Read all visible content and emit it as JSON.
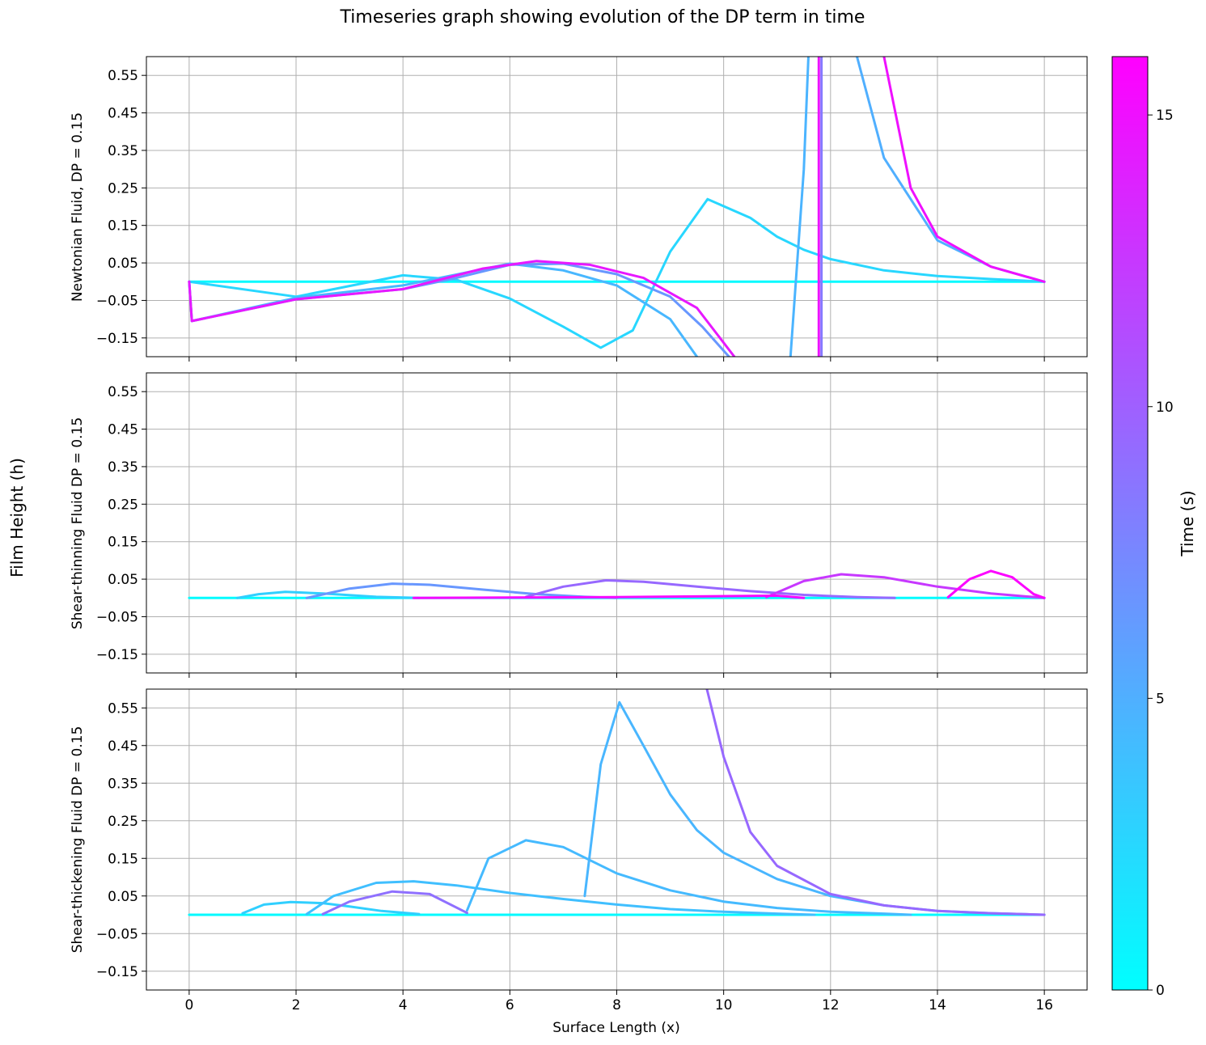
{
  "chart_data": {
    "type": "line",
    "title": "Timeseries graph showing evolution of the DP term in time",
    "ylabel_shared": "Film Height (h)",
    "xlabel": "Surface Length (x)",
    "xlim": [
      -0.8,
      16.8
    ],
    "ylim": [
      -0.2,
      0.6
    ],
    "x_ticks": [
      "0",
      "2",
      "4",
      "6",
      "8",
      "10",
      "12",
      "14",
      "16"
    ],
    "x_tick_values": [
      0,
      2,
      4,
      6,
      8,
      10,
      12,
      14,
      16
    ],
    "y_ticks": [
      "0.55",
      "0.45",
      "0.35",
      "0.25",
      "0.15",
      "0.05",
      "−0.05",
      "−0.15"
    ],
    "y_tick_values": [
      0.55,
      0.45,
      0.35,
      0.25,
      0.15,
      0.05,
      -0.05,
      -0.15
    ],
    "grid": true,
    "colorbar": {
      "label": "Time (s)",
      "range": [
        0,
        16
      ],
      "ticks": [
        "0",
        "5",
        "10",
        "15"
      ],
      "tick_values": [
        0,
        5,
        10,
        15
      ],
      "colormap": "cool",
      "color_low": "#00ffff",
      "color_high": "#ff00ff"
    },
    "panels": [
      {
        "ylabel": "Newtonian Fluid, DP = 0.15",
        "series": [
          {
            "time": 0.3,
            "points": [
              [
                0,
                0
              ],
              [
                16,
                0
              ]
            ]
          },
          {
            "time": 2.5,
            "points": [
              [
                0,
                0
              ],
              [
                2,
                -0.04
              ],
              [
                4,
                0.017
              ],
              [
                5,
                0.005
              ],
              [
                6,
                -0.045
              ],
              [
                7,
                -0.12
              ],
              [
                7.7,
                -0.176
              ],
              [
                8.3,
                -0.13
              ],
              [
                9,
                0.08
              ],
              [
                9.7,
                0.22
              ],
              [
                10.5,
                0.17
              ],
              [
                11,
                0.12
              ],
              [
                11.5,
                0.085
              ],
              [
                12,
                0.06
              ],
              [
                13,
                0.03
              ],
              [
                14,
                0.015
              ],
              [
                15,
                0.007
              ],
              [
                16,
                0
              ]
            ]
          },
          {
            "time": 4.5,
            "points": [
              [
                0,
                0
              ],
              [
                0.05,
                -0.105
              ],
              [
                2,
                -0.043
              ],
              [
                4,
                -0.01
              ],
              [
                6,
                0.048
              ],
              [
                7,
                0.03
              ],
              [
                8,
                -0.01
              ],
              [
                9,
                -0.1
              ],
              [
                9.5,
                -0.2
              ]
            ]
          },
          {
            "time": 4.7,
            "points": [
              [
                11.25,
                -0.2
              ],
              [
                11.5,
                0.3
              ],
              [
                11.6,
                0.65
              ]
            ]
          },
          {
            "time": 5.0,
            "points": [
              [
                12.4,
                0.65
              ],
              [
                13,
                0.33
              ],
              [
                14,
                0.11
              ],
              [
                15,
                0.04
              ],
              [
                16,
                0
              ]
            ]
          },
          {
            "time": 6.5,
            "points": [
              [
                0,
                0
              ],
              [
                0.05,
                -0.105
              ],
              [
                2,
                -0.047
              ],
              [
                3,
                -0.033
              ],
              [
                4,
                -0.02
              ],
              [
                5,
                0.01
              ],
              [
                6,
                0.045
              ],
              [
                7,
                0.048
              ],
              [
                8,
                0.02
              ],
              [
                9,
                -0.04
              ],
              [
                9.6,
                -0.12
              ],
              [
                10.1,
                -0.2
              ]
            ]
          },
          {
            "time": 8.5,
            "points": [
              [
                11.83,
                -0.2
              ],
              [
                11.83,
                0.65
              ]
            ]
          },
          {
            "time": 14.5,
            "points": [
              [
                0,
                0
              ],
              [
                0.05,
                -0.105
              ],
              [
                2,
                -0.047
              ],
              [
                4,
                -0.02
              ],
              [
                5.5,
                0.035
              ],
              [
                6.5,
                0.055
              ],
              [
                7.5,
                0.045
              ],
              [
                8.5,
                0.01
              ],
              [
                9.5,
                -0.07
              ],
              [
                10.2,
                -0.2
              ]
            ]
          },
          {
            "time": 14.8,
            "points": [
              [
                11.78,
                -0.2
              ],
              [
                11.78,
                0.65
              ]
            ]
          },
          {
            "time": 15.0,
            "points": [
              [
                13.0,
                0.6
              ],
              [
                13.5,
                0.25
              ],
              [
                14,
                0.12
              ],
              [
                15,
                0.04
              ],
              [
                16,
                0
              ]
            ]
          }
        ]
      },
      {
        "ylabel": "Shear-thinning Fluid DP = 0.15",
        "series": [
          {
            "time": 0.2,
            "points": [
              [
                0,
                0
              ],
              [
                16,
                0
              ]
            ]
          },
          {
            "time": 3.0,
            "points": [
              [
                0.9,
                0
              ],
              [
                1.3,
                0.01
              ],
              [
                1.8,
                0.016
              ],
              [
                2.5,
                0.012
              ],
              [
                3.5,
                0.003
              ],
              [
                4.3,
                0
              ]
            ]
          },
          {
            "time": 6.5,
            "points": [
              [
                2.2,
                0
              ],
              [
                3,
                0.025
              ],
              [
                3.8,
                0.038
              ],
              [
                4.5,
                0.035
              ],
              [
                5.5,
                0.022
              ],
              [
                6.5,
                0.01
              ],
              [
                7.4,
                0.003
              ],
              [
                8,
                0
              ]
            ]
          },
          {
            "time": 9.5,
            "points": [
              [
                6.3,
                0.003
              ],
              [
                7,
                0.03
              ],
              [
                7.8,
                0.047
              ],
              [
                8.5,
                0.043
              ],
              [
                9.5,
                0.03
              ],
              [
                10.5,
                0.018
              ],
              [
                11.5,
                0.008
              ],
              [
                12.5,
                0.002
              ],
              [
                13.2,
                0
              ]
            ]
          },
          {
            "time": 12.5,
            "points": [
              [
                10.8,
                0.002
              ],
              [
                11.5,
                0.045
              ],
              [
                12.2,
                0.063
              ],
              [
                13,
                0.055
              ],
              [
                14,
                0.03
              ],
              [
                15,
                0.012
              ],
              [
                16,
                0
              ]
            ]
          },
          {
            "time": 15.5,
            "points": [
              [
                4.2,
                0
              ],
              [
                8,
                0.002
              ],
              [
                11,
                0.006
              ],
              [
                11.5,
                0
              ]
            ]
          },
          {
            "time": 15.8,
            "points": [
              [
                14.2,
                0.002
              ],
              [
                14.6,
                0.05
              ],
              [
                15,
                0.072
              ],
              [
                15.4,
                0.055
              ],
              [
                15.8,
                0.01
              ],
              [
                16,
                0
              ]
            ]
          }
        ]
      },
      {
        "ylabel": "Shear-thickening Fluid DP = 0.15",
        "series": [
          {
            "time": 0.3,
            "points": [
              [
                0,
                0
              ],
              [
                16,
                0
              ]
            ]
          },
          {
            "time": 3.0,
            "points": [
              [
                1.0,
                0.004
              ],
              [
                1.4,
                0.027
              ],
              [
                1.9,
                0.034
              ],
              [
                2.5,
                0.031
              ],
              [
                3,
                0.022
              ],
              [
                3.6,
                0.01
              ],
              [
                4.3,
                0.002
              ]
            ]
          },
          {
            "time": 4.0,
            "points": [
              [
                2.2,
                0.002
              ],
              [
                2.7,
                0.05
              ],
              [
                3.5,
                0.085
              ],
              [
                4.2,
                0.089
              ],
              [
                5,
                0.078
              ],
              [
                6,
                0.058
              ],
              [
                7,
                0.042
              ],
              [
                8,
                0.027
              ],
              [
                9,
                0.015
              ],
              [
                10,
                0.008
              ],
              [
                11,
                0.003
              ],
              [
                11.7,
                0
              ]
            ]
          },
          {
            "time": 4.3,
            "points": [
              [
                5.2,
                0.012
              ],
              [
                5.6,
                0.15
              ],
              [
                6.3,
                0.198
              ],
              [
                7,
                0.18
              ],
              [
                8,
                0.11
              ],
              [
                9,
                0.065
              ],
              [
                10,
                0.035
              ],
              [
                11,
                0.018
              ],
              [
                12,
                0.008
              ],
              [
                13,
                0.003
              ],
              [
                13.5,
                0
              ]
            ]
          },
          {
            "time": 4.6,
            "points": [
              [
                7.4,
                0.05
              ],
              [
                7.7,
                0.4
              ],
              [
                8.05,
                0.565
              ],
              [
                8.5,
                0.45
              ],
              [
                9,
                0.32
              ],
              [
                9.5,
                0.225
              ],
              [
                10,
                0.165
              ],
              [
                11,
                0.095
              ],
              [
                12,
                0.05
              ],
              [
                13,
                0.025
              ],
              [
                14,
                0.01
              ],
              [
                15,
                0.004
              ],
              [
                16,
                0
              ]
            ]
          },
          {
            "time": 9.0,
            "points": [
              [
                2.5,
                0.002
              ],
              [
                3,
                0.035
              ],
              [
                3.8,
                0.062
              ],
              [
                4.5,
                0.055
              ],
              [
                5.2,
                0.005
              ]
            ]
          },
          {
            "time": 9.5,
            "points": [
              [
                9.6,
                0.65
              ],
              [
                10,
                0.42
              ],
              [
                10.5,
                0.22
              ],
              [
                11,
                0.13
              ],
              [
                12,
                0.055
              ],
              [
                13,
                0.025
              ],
              [
                14,
                0.01
              ],
              [
                15,
                0.004
              ],
              [
                16,
                0
              ]
            ]
          }
        ]
      }
    ]
  }
}
